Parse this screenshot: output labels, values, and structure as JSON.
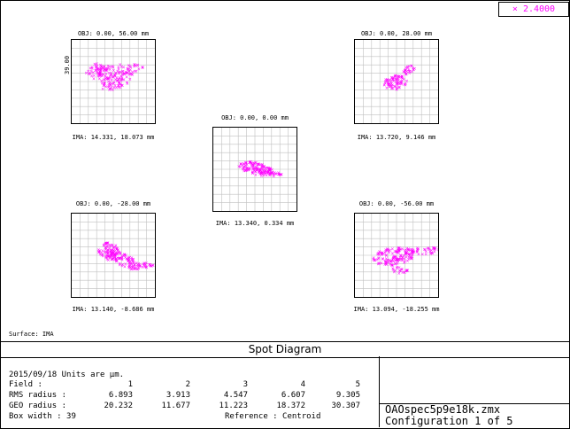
{
  "wavelength": "×  2.4000",
  "surface_label": "Surface: IMA",
  "scale_label": "39.00",
  "title": "Spot Diagram",
  "spots": [
    {
      "obj": "OBJ: 0.00, 56.00 mm",
      "ima": "IMA: 14.331, 18.073 mm"
    },
    {
      "obj": "OBJ: 0.00, 28.00 mm",
      "ima": "IMA: 13.720, 9.146 mm"
    },
    {
      "obj": "OBJ: 0.00, 0.00 mm",
      "ima": "IMA: 13.340, 0.334 mm"
    },
    {
      "obj": "OBJ: 0.00, -28.00 mm",
      "ima": "IMA: 13.140, -8.686 mm"
    },
    {
      "obj": "OBJ: 0.00, -56.00 mm",
      "ima": "IMA: 13.094, -18.255 mm"
    }
  ],
  "info": {
    "date_units": "2015/09/18  Units are µm.",
    "field_label": "Field     :",
    "rms_label": "RMS radius :",
    "geo_label": "GEO radius :",
    "box_label": "Box width  : 39",
    "reference": "Reference  : Centroid",
    "fields": [
      "1",
      "2",
      "3",
      "4",
      "5"
    ],
    "rms": [
      "6.893",
      "3.913",
      "4.547",
      "6.607",
      "9.305"
    ],
    "geo": [
      "20.232",
      "11.677",
      "11.223",
      "18.372",
      "30.307"
    ]
  },
  "file": {
    "name": "OAOspec5p9e18k.zmx",
    "config": "Configuration 1 of 5"
  },
  "colors": {
    "spot": "#ff00ff",
    "grid": "#c0c0c0"
  }
}
